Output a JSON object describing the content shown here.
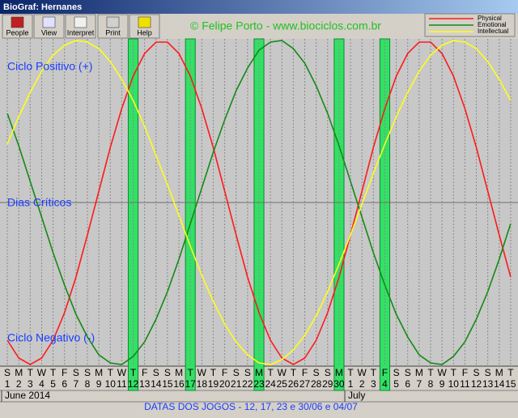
{
  "window": {
    "title": "BioGraf: Hernanes"
  },
  "toolbar": [
    "People",
    "View",
    "Interpret",
    "Print",
    "Help"
  ],
  "credit": "© Felipe Porto - www.biociclos.com.br",
  "footer": "DATAS DOS JOGOS - 12, 17, 23 e 30/06 e 04/07",
  "chart_data": {
    "type": "line",
    "annotations": [
      "Ciclo Positivo (+)",
      "Dias Críticos",
      "Ciclo Negativo (-)"
    ],
    "months": [
      "June 2014",
      "July"
    ],
    "weekdays": [
      "S",
      "M",
      "T",
      "W",
      "T",
      "F",
      "S",
      "S",
      "M",
      "T",
      "W",
      "T",
      "F",
      "S",
      "S",
      "M",
      "T",
      "W",
      "T",
      "F",
      "S",
      "S",
      "M",
      "T",
      "W",
      "T",
      "F",
      "S",
      "S",
      "M",
      "T",
      "W",
      "T",
      "F",
      "S",
      "S",
      "M",
      "T",
      "W",
      "T",
      "F",
      "S",
      "S",
      "M",
      "T"
    ],
    "categories": [
      "1",
      "2",
      "3",
      "4",
      "5",
      "6",
      "7",
      "8",
      "9",
      "10",
      "11",
      "12",
      "13",
      "14",
      "15",
      "16",
      "17",
      "18",
      "19",
      "20",
      "21",
      "22",
      "23",
      "24",
      "25",
      "26",
      "27",
      "28",
      "29",
      "30",
      "1",
      "2",
      "3",
      "4",
      "5",
      "6",
      "7",
      "8",
      "9",
      "10",
      "11",
      "12",
      "13",
      "14",
      "15"
    ],
    "highlighted": [
      false,
      false,
      false,
      false,
      false,
      false,
      false,
      false,
      false,
      false,
      false,
      true,
      false,
      false,
      false,
      false,
      true,
      false,
      false,
      false,
      false,
      false,
      true,
      false,
      false,
      false,
      false,
      false,
      false,
      true,
      false,
      false,
      false,
      true,
      false,
      false,
      false,
      false,
      false,
      false,
      false,
      false,
      false,
      false,
      false
    ],
    "ylim": [
      -100,
      100
    ],
    "series": [
      {
        "name": "Physical",
        "color": "#ff1a1a",
        "values": [
          -85,
          -96,
          -100,
          -96,
          -85,
          -68,
          -46,
          -20,
          7,
          34,
          58,
          78,
          92,
          99,
          99,
          92,
          78,
          58,
          34,
          7,
          -20,
          -46,
          -68,
          -85,
          -96,
          -100,
          -96,
          -85,
          -68,
          -46,
          -20,
          7,
          34,
          58,
          78,
          92,
          99,
          99,
          92,
          78,
          58,
          34,
          7,
          -20,
          -46
        ]
      },
      {
        "name": "Emotional",
        "color": "#138a13",
        "values": [
          55,
          35,
          13,
          -9,
          -31,
          -51,
          -69,
          -83,
          -94,
          -99,
          -100,
          -95,
          -86,
          -72,
          -55,
          -35,
          -13,
          9,
          31,
          51,
          69,
          83,
          94,
          99,
          100,
          95,
          86,
          72,
          55,
          35,
          13,
          -9,
          -31,
          -51,
          -69,
          -83,
          -94,
          -99,
          -100,
          -95,
          -86,
          -72,
          -55,
          -35,
          -13
        ]
      },
      {
        "name": "Intellectual",
        "color": "#ffff1a",
        "values": [
          36,
          53,
          68,
          81,
          91,
          97,
          100,
          99,
          95,
          87,
          76,
          63,
          47,
          29,
          11,
          -8,
          -27,
          -45,
          -61,
          -75,
          -86,
          -94,
          -99,
          -100,
          -97,
          -91,
          -82,
          -70,
          -55,
          -38,
          -20,
          -1,
          18,
          36,
          53,
          68,
          81,
          91,
          97,
          100,
          99,
          95,
          87,
          76,
          63
        ]
      }
    ]
  }
}
